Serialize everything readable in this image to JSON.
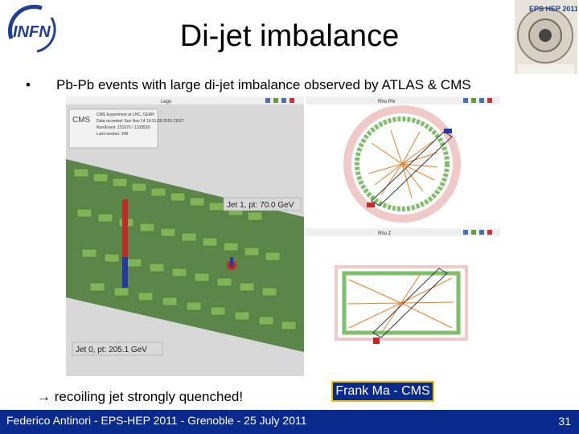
{
  "logos": {
    "left": "INFN",
    "right": "EPS HEP 2011"
  },
  "title": "Di-jet imbalance",
  "bullet": {
    "marker": "•",
    "text": "Pb-Pb events with large di-jet imbalance observed by ATLAS & CMS"
  },
  "event_display": {
    "panel_lego_title": "Lego",
    "panel_rhophi_title": "Rho Phi",
    "panel_rhoz_title": "Rho Z",
    "info_lines": [
      "CMS Experiment at LHC, CERN",
      "Data recorded: Sun Nov 14 19:31:39 2010 CEST",
      "Run/Event: 151076 / 1328520",
      "Lumi section: 249"
    ],
    "jet1_label": "Jet 1, pt: 70.0 GeV",
    "jet0_label": "Jet 0, pt: 205.1 GeV"
  },
  "conclusion": {
    "arrow": "→",
    "text": "recoiling jet strongly quenched!"
  },
  "credit": "Frank Ma - CMS",
  "footer": {
    "text": "Federico Antinori - EPS-HEP 2011 - Grenoble - 25 July 2011",
    "page": "31"
  }
}
